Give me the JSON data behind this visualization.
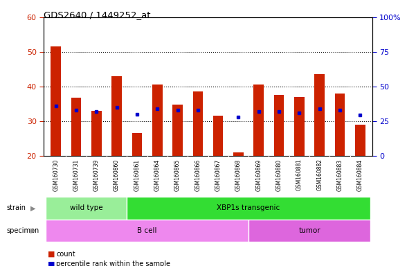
{
  "title": "GDS2640 / 1449252_at",
  "samples": [
    "GSM160730",
    "GSM160731",
    "GSM160739",
    "GSM160860",
    "GSM160861",
    "GSM160864",
    "GSM160865",
    "GSM160866",
    "GSM160867",
    "GSM160868",
    "GSM160869",
    "GSM160880",
    "GSM160881",
    "GSM160882",
    "GSM160883",
    "GSM160884"
  ],
  "counts": [
    51.5,
    36.7,
    33.0,
    43.0,
    26.5,
    40.5,
    34.7,
    38.5,
    31.5,
    21.0,
    40.5,
    37.5,
    37.0,
    43.5,
    38.0,
    29.0
  ],
  "percentiles": [
    36.0,
    33.0,
    32.0,
    35.0,
    30.0,
    34.0,
    33.0,
    33.0,
    null,
    28.0,
    32.0,
    32.0,
    31.0,
    34.0,
    33.0,
    29.5
  ],
  "ymin": 20,
  "ymax": 60,
  "yticks_left": [
    20,
    30,
    40,
    50,
    60
  ],
  "yticks_right": [
    0,
    25,
    50,
    75,
    100
  ],
  "grid_yticks": [
    30,
    40,
    50
  ],
  "bar_color": "#cc2200",
  "dot_color": "#0000cc",
  "strain_groups": [
    {
      "label": "wild type",
      "start": 0,
      "end": 4,
      "color": "#99ee99"
    },
    {
      "label": "XBP1s transgenic",
      "start": 4,
      "end": 16,
      "color": "#33dd33"
    }
  ],
  "specimen_groups": [
    {
      "label": "B cell",
      "start": 0,
      "end": 10,
      "color": "#ee88ee"
    },
    {
      "label": "tumor",
      "start": 10,
      "end": 16,
      "color": "#dd66dd"
    }
  ],
  "legend_items": [
    {
      "label": "count",
      "color": "#cc2200"
    },
    {
      "label": "percentile rank within the sample",
      "color": "#0000cc"
    }
  ],
  "bar_width": 0.5,
  "bg_color": "#ffffff",
  "plot_bg": "#ffffff",
  "color_left": "#cc2200",
  "color_right": "#0000cc",
  "grid_color": "#000000",
  "xticklabel_bg": "#cccccc",
  "xticklabel_divider": "#aaaaaa"
}
